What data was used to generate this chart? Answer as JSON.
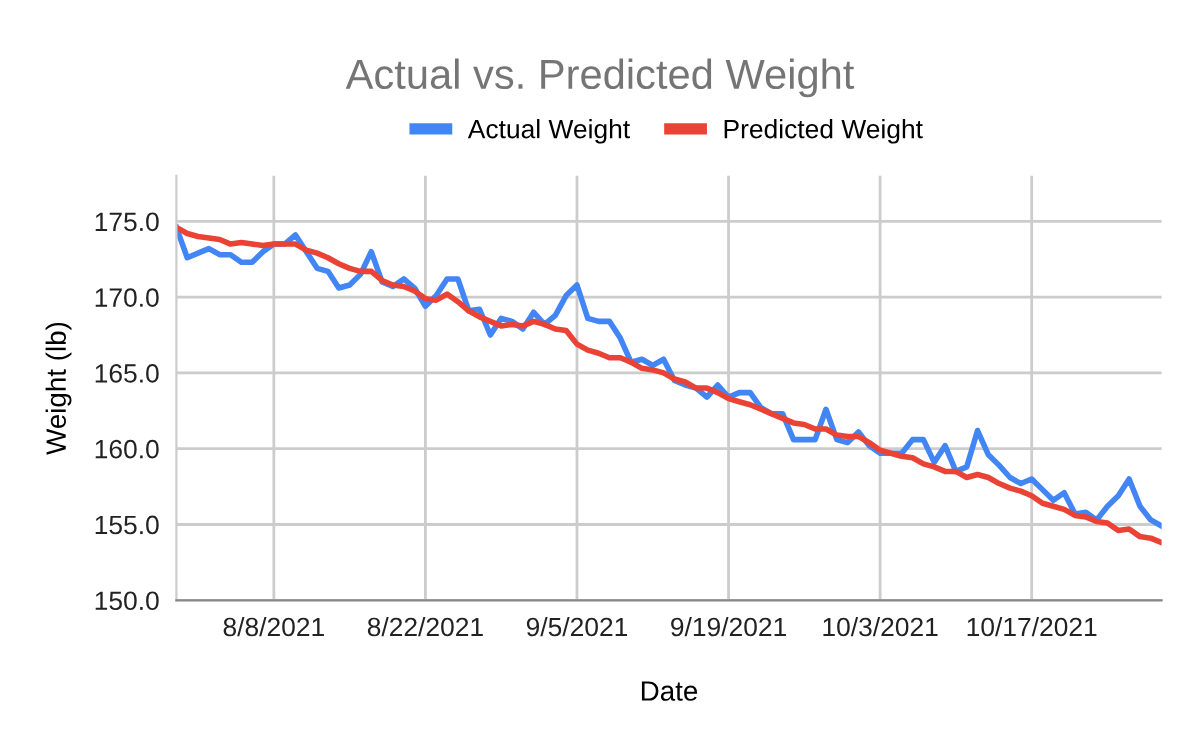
{
  "chart_data": {
    "type": "line",
    "title": "Actual vs. Predicted Weight",
    "xlabel": "Date",
    "ylabel": "Weight (lb)",
    "x": [
      "2021-07-30",
      "2021-07-31",
      "2021-08-01",
      "2021-08-02",
      "2021-08-03",
      "2021-08-04",
      "2021-08-05",
      "2021-08-06",
      "2021-08-07",
      "2021-08-08",
      "2021-08-09",
      "2021-08-10",
      "2021-08-11",
      "2021-08-12",
      "2021-08-13",
      "2021-08-14",
      "2021-08-15",
      "2021-08-16",
      "2021-08-17",
      "2021-08-18",
      "2021-08-19",
      "2021-08-20",
      "2021-08-21",
      "2021-08-22",
      "2021-08-23",
      "2021-08-24",
      "2021-08-25",
      "2021-08-26",
      "2021-08-27",
      "2021-08-28",
      "2021-08-29",
      "2021-08-30",
      "2021-08-31",
      "2021-09-01",
      "2021-09-02",
      "2021-09-03",
      "2021-09-04",
      "2021-09-05",
      "2021-09-06",
      "2021-09-07",
      "2021-09-08",
      "2021-09-09",
      "2021-09-10",
      "2021-09-11",
      "2021-09-12",
      "2021-09-13",
      "2021-09-14",
      "2021-09-15",
      "2021-09-16",
      "2021-09-17",
      "2021-09-18",
      "2021-09-19",
      "2021-09-20",
      "2021-09-21",
      "2021-09-22",
      "2021-09-23",
      "2021-09-24",
      "2021-09-25",
      "2021-09-26",
      "2021-09-27",
      "2021-09-28",
      "2021-09-29",
      "2021-09-30",
      "2021-10-01",
      "2021-10-02",
      "2021-10-03",
      "2021-10-04",
      "2021-10-05",
      "2021-10-06",
      "2021-10-07",
      "2021-10-08",
      "2021-10-09",
      "2021-10-10",
      "2021-10-11",
      "2021-10-12",
      "2021-10-13",
      "2021-10-14",
      "2021-10-15",
      "2021-10-16",
      "2021-10-17",
      "2021-10-18",
      "2021-10-19",
      "2021-10-20",
      "2021-10-21",
      "2021-10-22",
      "2021-10-23",
      "2021-10-24",
      "2021-10-25",
      "2021-10-26",
      "2021-10-27",
      "2021-10-28",
      "2021-10-29"
    ],
    "series": [
      {
        "name": "Actual Weight",
        "color": "#4285f4",
        "values": [
          174.6,
          172.6,
          172.9,
          173.2,
          172.8,
          172.8,
          172.3,
          172.3,
          173.0,
          173.5,
          173.5,
          174.1,
          173.0,
          171.9,
          171.7,
          170.6,
          170.8,
          171.5,
          173.0,
          171.0,
          170.7,
          171.2,
          170.6,
          169.4,
          170.1,
          171.2,
          171.2,
          169.1,
          169.2,
          167.5,
          168.6,
          168.4,
          167.9,
          169.0,
          168.2,
          168.8,
          170.1,
          170.8,
          168.6,
          168.4,
          168.4,
          167.3,
          165.7,
          165.9,
          165.5,
          165.9,
          164.5,
          164.2,
          164.0,
          163.4,
          164.2,
          163.4,
          163.7,
          163.7,
          162.7,
          162.3,
          162.3,
          160.6,
          160.6,
          160.6,
          162.6,
          160.6,
          160.4,
          161.1,
          160.2,
          159.7,
          159.7,
          159.7,
          160.6,
          160.6,
          159.1,
          160.2,
          158.5,
          158.8,
          161.2,
          159.6,
          158.9,
          158.1,
          157.7,
          158.0,
          157.3,
          156.6,
          157.1,
          155.7,
          155.8,
          155.3,
          156.2,
          156.9,
          158.0,
          156.2,
          155.3,
          154.9
        ]
      },
      {
        "name": "Predicted Weight",
        "color": "#ea4335",
        "values": [
          174.6,
          174.2,
          174.0,
          173.9,
          173.8,
          173.5,
          173.6,
          173.5,
          173.4,
          173.5,
          173.5,
          173.5,
          173.1,
          172.9,
          172.6,
          172.2,
          171.9,
          171.7,
          171.7,
          171.1,
          170.8,
          170.7,
          170.4,
          169.9,
          169.8,
          170.2,
          169.7,
          169.1,
          168.7,
          168.4,
          168.1,
          168.2,
          168.1,
          168.4,
          168.2,
          167.9,
          167.8,
          166.9,
          166.5,
          166.3,
          166.0,
          166.0,
          165.7,
          165.3,
          165.2,
          165.0,
          164.6,
          164.4,
          164.0,
          164.0,
          163.7,
          163.3,
          163.1,
          162.9,
          162.6,
          162.3,
          162.0,
          161.7,
          161.6,
          161.3,
          161.3,
          160.9,
          160.8,
          160.8,
          160.4,
          159.9,
          159.7,
          159.5,
          159.4,
          159.0,
          158.8,
          158.5,
          158.5,
          158.1,
          158.3,
          158.1,
          157.7,
          157.4,
          157.2,
          156.9,
          156.4,
          156.2,
          156.0,
          155.6,
          155.5,
          155.2,
          155.1,
          154.6,
          154.7,
          154.2,
          154.1,
          153.8
        ]
      }
    ],
    "xlim": [
      "2021-07-30",
      "2021-10-29"
    ],
    "xticks": [
      {
        "value": "2021-08-08",
        "label": "8/8/2021"
      },
      {
        "value": "2021-08-22",
        "label": "8/22/2021"
      },
      {
        "value": "2021-09-05",
        "label": "9/5/2021"
      },
      {
        "value": "2021-09-19",
        "label": "9/19/2021"
      },
      {
        "value": "2021-10-03",
        "label": "10/3/2021"
      },
      {
        "value": "2021-10-17",
        "label": "10/17/2021"
      }
    ],
    "ylim": [
      150,
      178
    ],
    "yticks": [
      {
        "value": 150,
        "label": "150.0"
      },
      {
        "value": 155,
        "label": "155.0"
      },
      {
        "value": 160,
        "label": "160.0"
      },
      {
        "value": 165,
        "label": "165.0"
      },
      {
        "value": 170,
        "label": "170.0"
      },
      {
        "value": 175,
        "label": "175.0"
      }
    ],
    "grid": true,
    "legend": "top",
    "marker": "none",
    "line_style": "solid"
  }
}
